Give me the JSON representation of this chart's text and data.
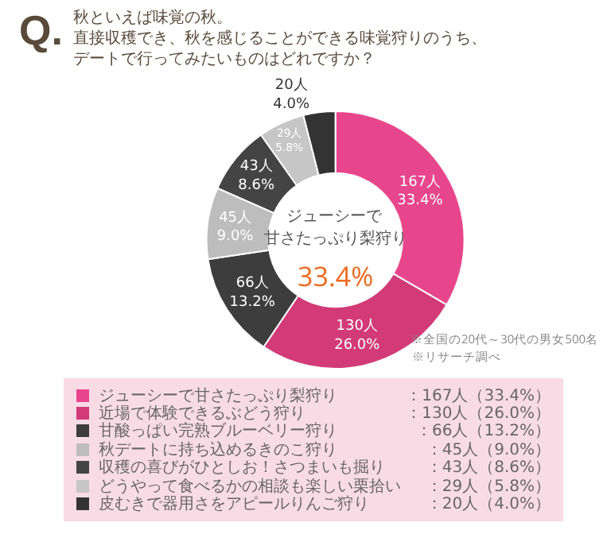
{
  "chart_data": {
    "type": "donut",
    "title": "Q.",
    "subtitle": "秋といえば味覚の秋。",
    "categories": [
      "ジューシーで甘さたっぷり梨狩り",
      "近場で体験できるぶどう狩り",
      "甘酸っぱい完熟ブルーベリー狩り",
      "秋デートに持ち込めるきのこ狩り",
      "収穫の喜びがひとしお！さつまいも掘り",
      "どうやって食べるかの相談も楽しい栗拾い",
      "皮むきで器用さをアピールりんご狩り"
    ],
    "values": [
      167,
      130,
      66,
      45,
      43,
      29,
      20
    ],
    "value_labels": [
      "167人\n33.4%",
      "130人\n26.0%",
      "66人\n13.2%",
      "45人\n9.0%",
      "43人\n8.6%",
      "29人\n5.8%",
      "20人\n4.0%"
    ],
    "colors": [
      "#e8468c",
      "#d23b77",
      "#3d3d3d",
      "#bdbdbd",
      "#444444",
      "#c6c6c6",
      "#333333"
    ],
    "legend": "bottom",
    "annotations": [
      "直接収穫でき、秋を感じることができる味覚狩りのうち、デートで行ってみたいものはどれですか？",
      "ジューシーで",
      "甘さたっぷり梨狩り",
      "33.4%",
      "※全国の20代～30代の男女500名",
      "※リサーチ調べ",
      "：167人（33.4%）",
      "：130人（26.0%）",
      "：66人（13.2%）",
      "：45人（9.0%）",
      "：43人（8.6%）",
      "：29人（5.8%）",
      "：20人（4.0%）"
    ]
  }
}
